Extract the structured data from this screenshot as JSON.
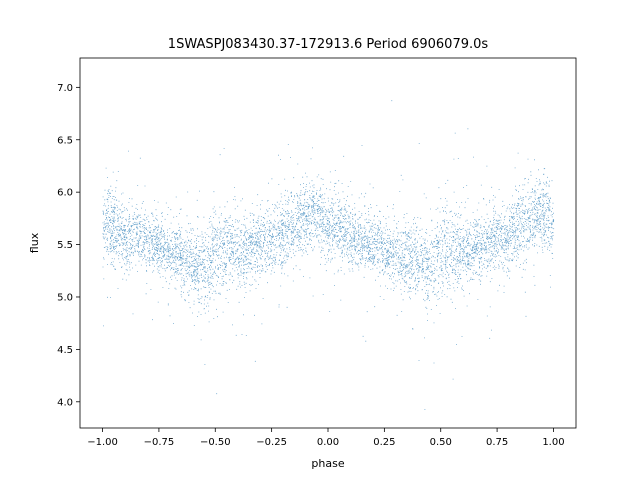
{
  "chart_data": {
    "type": "scatter",
    "title": "1SWASPJ083430.37-172913.6 Period 6906079.0s",
    "xlabel": "phase",
    "ylabel": "flux",
    "xlim": [
      -1.1,
      1.1
    ],
    "ylim": [
      3.75,
      7.28
    ],
    "x_ticks": [
      -1.0,
      -0.75,
      -0.5,
      -0.25,
      0.0,
      0.25,
      0.5,
      0.75,
      1.0
    ],
    "x_tick_labels": [
      "−1.00",
      "−0.75",
      "−0.50",
      "−0.25",
      "0.00",
      "0.25",
      "0.50",
      "0.75",
      "1.00"
    ],
    "y_ticks": [
      4.0,
      4.5,
      5.0,
      5.5,
      6.0,
      6.5,
      7.0
    ],
    "y_tick_labels": [
      "4.0",
      "4.5",
      "5.0",
      "5.5",
      "6.0",
      "6.5",
      "7.0"
    ],
    "grid": false,
    "marker_color": "#1f77b4",
    "series": [
      {
        "phase_profile": {
          "phase": [
            -1.0,
            -0.95,
            -0.9,
            -0.85,
            -0.8,
            -0.75,
            -0.7,
            -0.65,
            -0.6,
            -0.55,
            -0.5,
            -0.45,
            -0.4,
            -0.35,
            -0.3,
            -0.25,
            -0.2,
            -0.15,
            -0.1,
            -0.05,
            0.0,
            0.05,
            0.1,
            0.15,
            0.2,
            0.25,
            0.3,
            0.35,
            0.4,
            0.45,
            0.5,
            0.55,
            0.6,
            0.65,
            0.7,
            0.75,
            0.8,
            0.85,
            0.9,
            0.95,
            1.0
          ],
          "median_flux": [
            5.7,
            5.65,
            5.55,
            5.6,
            5.55,
            5.5,
            5.4,
            5.4,
            5.35,
            5.25,
            5.45,
            5.45,
            5.45,
            5.45,
            5.5,
            5.55,
            5.6,
            5.65,
            5.75,
            5.8,
            5.7,
            5.65,
            5.55,
            5.55,
            5.5,
            5.45,
            5.4,
            5.4,
            5.35,
            5.25,
            5.45,
            5.45,
            5.45,
            5.45,
            5.5,
            5.55,
            5.6,
            5.65,
            5.75,
            5.8,
            5.7
          ],
          "spread": [
            0.3,
            0.3,
            0.28,
            0.25,
            0.25,
            0.25,
            0.28,
            0.3,
            0.3,
            0.35,
            0.4,
            0.35,
            0.3,
            0.28,
            0.28,
            0.28,
            0.28,
            0.3,
            0.3,
            0.3,
            0.3,
            0.3,
            0.28,
            0.25,
            0.25,
            0.25,
            0.28,
            0.3,
            0.3,
            0.35,
            0.4,
            0.35,
            0.3,
            0.28,
            0.28,
            0.28,
            0.28,
            0.3,
            0.3,
            0.3,
            0.3
          ]
        },
        "point_count": 16000,
        "x_range": [
          -1.0,
          1.0
        ],
        "y_range": [
          3.9,
          7.1
        ]
      }
    ]
  }
}
